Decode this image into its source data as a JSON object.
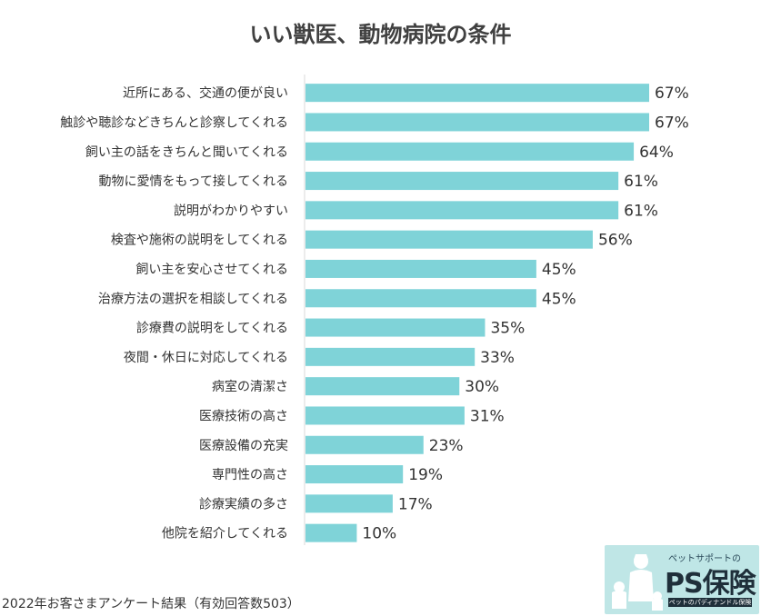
{
  "chart_data": {
    "type": "bar",
    "orientation": "horizontal",
    "title": "いい獣医、動物病院の条件",
    "categories": [
      "近所にある、交通の便が良い",
      "触診や聴診などきちんと診察してくれる",
      "飼い主の話をきちんと聞いてくれる",
      "動物に愛情をもって接してくれる",
      "説明がわかりやすい",
      "検査や施術の説明をしてくれる",
      "飼い主を安心させてくれる",
      "治療方法の選択を相談してくれる",
      "診療費の説明をしてくれる",
      "夜間・休日に対応してくれる",
      "病室の清潔さ",
      "医療技術の高さ",
      "医療設備の充実",
      "専門性の高さ",
      "診療実績の多さ",
      "他院を紹介してくれる"
    ],
    "values": [
      67,
      67,
      64,
      61,
      61,
      56,
      45,
      45,
      35,
      33,
      30,
      31,
      23,
      19,
      17,
      10
    ],
    "value_labels": [
      "67%",
      "67%",
      "64%",
      "61%",
      "61%",
      "56%",
      "45%",
      "45%",
      "35%",
      "33%",
      "30%",
      "31%",
      "23%",
      "19%",
      "17%",
      "10%"
    ],
    "bar_color": "#7fd3d8",
    "grid": false,
    "xlim": [
      0,
      100
    ]
  },
  "footer": "2022年お客さまアンケート結果（有効回答数503）",
  "logo": {
    "subtitle": "ペットサポートの",
    "name": "PS保険",
    "tagline": "ペットのパディナンドル保険"
  }
}
